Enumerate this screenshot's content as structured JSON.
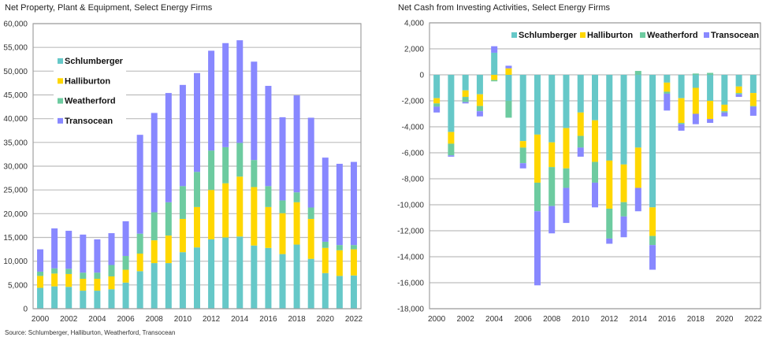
{
  "source": "Source: Schlumberger, Halliburton, Weatherford, Transocean",
  "colors": {
    "Schlumberger": "#66C8C8",
    "Halliburton": "#FFD700",
    "Weatherford": "#6DCBA0",
    "Transocean": "#8888FF",
    "grid": "#BDBDBD",
    "axis": "#A0A0A0"
  },
  "chart_data": [
    {
      "type": "bar",
      "stacked": true,
      "title": "Net Property, Plant & Equipment, Select Energy Firms",
      "xlabel": "",
      "ylabel": "",
      "ylim": [
        0,
        60000
      ],
      "yticks": [
        0,
        5000,
        10000,
        15000,
        20000,
        25000,
        30000,
        35000,
        40000,
        45000,
        50000,
        55000,
        60000
      ],
      "ytick_labels": [
        "0",
        "5,000",
        "10,000",
        "15,000",
        "20,000",
        "25,000",
        "30,000",
        "35,000",
        "40,000",
        "45,000",
        "50,000",
        "55,000",
        "60,000"
      ],
      "grid": true,
      "legend": "left-upper",
      "categories": [
        2000,
        2001,
        2002,
        2003,
        2004,
        2005,
        2006,
        2007,
        2008,
        2009,
        2010,
        2011,
        2012,
        2013,
        2014,
        2015,
        2016,
        2017,
        2018,
        2019,
        2020,
        2021,
        2022
      ],
      "xtick_labels": [
        "2000",
        "2002",
        "2004",
        "2006",
        "2008",
        "2010",
        "2012",
        "2014",
        "2016",
        "2018",
        "2020",
        "2022"
      ],
      "series": [
        {
          "name": "Schlumberger",
          "values": [
            4400,
            4700,
            4600,
            3800,
            3800,
            4100,
            5500,
            7900,
            9600,
            9600,
            11900,
            12900,
            14600,
            15000,
            15200,
            13300,
            12800,
            11500,
            13500,
            10500,
            7500,
            6900,
            7000
          ]
        },
        {
          "name": "Halliburton",
          "values": [
            2500,
            2700,
            2700,
            2500,
            2500,
            2700,
            2700,
            3700,
            4800,
            5800,
            7000,
            8500,
            10400,
            11400,
            12600,
            12300,
            8600,
            8600,
            8900,
            8400,
            5300,
            5400,
            5500
          ]
        },
        {
          "name": "Weatherford",
          "values": [
            900,
            1100,
            1100,
            1300,
            1300,
            2400,
            2900,
            4200,
            5900,
            7000,
            6900,
            7400,
            8300,
            7600,
            7100,
            5700,
            4400,
            2700,
            2100,
            2400,
            1300,
            1100,
            900
          ]
        },
        {
          "name": "Transocean",
          "values": [
            4700,
            8400,
            8000,
            8000,
            7000,
            6700,
            7300,
            20800,
            20900,
            23000,
            21300,
            20800,
            21000,
            21900,
            21600,
            20700,
            21100,
            17500,
            20400,
            18900,
            17700,
            17100,
            17500
          ]
        }
      ]
    },
    {
      "type": "bar",
      "stacked": true,
      "title": "Net Cash from Investing Activities, Select Energy Firms",
      "xlabel": "",
      "ylabel": "",
      "ylim": [
        -18000,
        4000
      ],
      "yticks": [
        -18000,
        -16000,
        -14000,
        -12000,
        -10000,
        -8000,
        -6000,
        -4000,
        -2000,
        0,
        2000,
        4000
      ],
      "ytick_labels": [
        "-18,000",
        "-16,000",
        "-14,000",
        "-12,000",
        "-10,000",
        "-8,000",
        "-6,000",
        "-4,000",
        "-2,000",
        "0",
        "2,000",
        "4,000"
      ],
      "grid": true,
      "legend": "top",
      "categories": [
        2000,
        2001,
        2002,
        2003,
        2004,
        2005,
        2006,
        2007,
        2008,
        2009,
        2010,
        2011,
        2012,
        2013,
        2014,
        2015,
        2016,
        2017,
        2018,
        2019,
        2020,
        2021,
        2022
      ],
      "xtick_labels": [
        "2000",
        "2002",
        "2004",
        "2006",
        "2008",
        "2010",
        "2012",
        "2014",
        "2016",
        "2018",
        "2020",
        "2022"
      ],
      "series": [
        {
          "name": "Schlumberger",
          "values": [
            -1800,
            -4400,
            -1200,
            -1500,
            1700,
            -2000,
            -5100,
            -4600,
            -5200,
            -4100,
            -2900,
            -3500,
            -6600,
            -6900,
            -5600,
            -10200,
            -600,
            -1800,
            -1000,
            -2000,
            -2300,
            -900,
            -1400
          ]
        },
        {
          "name": "Halliburton",
          "values": [
            -400,
            -900,
            -500,
            -900,
            -400,
            500,
            -500,
            -3700,
            -1900,
            -3100,
            -1800,
            -3200,
            -3700,
            -2900,
            -3100,
            -2200,
            -700,
            -1900,
            -2000,
            -1400,
            -500,
            -500,
            -1000
          ]
        },
        {
          "name": "Weatherford",
          "values": [
            -250,
            -900,
            -400,
            -400,
            -100,
            -1300,
            -1200,
            -2200,
            -3000,
            -1500,
            -900,
            -1600,
            -2300,
            -1100,
            300,
            -700,
            -150,
            -100,
            100,
            150,
            -100,
            -100,
            -50
          ]
        },
        {
          "name": "Transocean",
          "values": [
            -450,
            -100,
            -100,
            -400,
            500,
            200,
            -400,
            -5700,
            -2100,
            -2700,
            -700,
            -1900,
            -400,
            -1600,
            -1800,
            -1900,
            -1300,
            -500,
            -800,
            -300,
            -300,
            -200,
            -700
          ]
        }
      ]
    }
  ]
}
